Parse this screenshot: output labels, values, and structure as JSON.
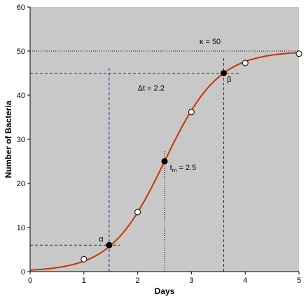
{
  "chart_data": {
    "type": "scatter",
    "xlabel": "Days",
    "ylabel": "Number of Bacteria",
    "xlim": [
      0,
      5
    ],
    "ylim": [
      0,
      60
    ],
    "xticks": [
      "0",
      "1",
      "2",
      "3",
      "4",
      "5"
    ],
    "yticks": [
      "0",
      "10",
      "20",
      "30",
      "40",
      "50",
      "60"
    ],
    "grid": false,
    "background_color": "#c8c8c8",
    "curve_color": "#cc3300",
    "guide_color": "#2222aa",
    "logistic": {
      "K": 50,
      "tm": 2.5,
      "r": 2.0
    },
    "open_points": [
      {
        "x": 1.0,
        "y": 2.8
      },
      {
        "x": 2.0,
        "y": 13.5
      },
      {
        "x": 3.0,
        "y": 36.2
      },
      {
        "x": 4.0,
        "y": 47.3
      },
      {
        "x": 5.0,
        "y": 49.4
      }
    ],
    "filled_points": [
      {
        "name": "alpha",
        "x": 1.47,
        "y": 6.0
      },
      {
        "name": "tm",
        "x": 2.5,
        "y": 25.0
      },
      {
        "name": "beta",
        "x": 3.6,
        "y": 45.0
      }
    ],
    "annotations": {
      "kappa": "κ = 50",
      "delta_t": "Δt = 2.2",
      "tm_main": "t",
      "tm_sub": "m",
      "tm_value": " = 2.5",
      "alpha": "α",
      "beta": "β"
    }
  }
}
